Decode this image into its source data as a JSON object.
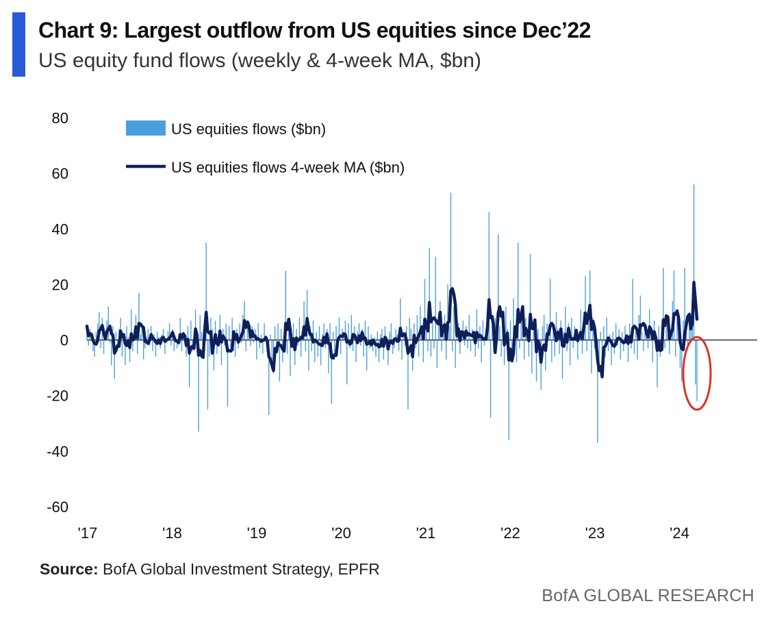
{
  "header": {
    "title": "Chart 9: Largest outflow from US equities since Dec’22",
    "subtitle": "US equity fund flows (weekly & 4-week MA, $bn)"
  },
  "footer": {
    "source_label": "Source:",
    "source_text": "BofA Global Investment Strategy, EPFR",
    "brand": "BofA GLOBAL RESEARCH"
  },
  "colors": {
    "accent": "#2a5bd7",
    "bars": "#4a9fdc",
    "line": "#0e1f5b",
    "zero_line": "#444444",
    "highlight": "#d9322b"
  },
  "chart_data": {
    "type": "bar",
    "ylim": [
      -60,
      80
    ],
    "y_ticks": [
      "80",
      "60",
      "40",
      "20",
      "0",
      "-20",
      "-40",
      "-60"
    ],
    "x_ticks": [
      "'17",
      "'18",
      "'19",
      "'20",
      "'21",
      "'22",
      "'23",
      "'24"
    ],
    "grid": false,
    "legend_position": "top-left",
    "annotation": "red oval highlighting latest weekly outflow",
    "series": [
      {
        "name": "US equities flows ($bn)",
        "type": "bar",
        "values": [
          5,
          -2,
          4,
          1,
          -4,
          -6,
          3,
          6,
          10,
          -3,
          8,
          -5,
          2,
          7,
          12,
          -1,
          -9,
          5,
          -14,
          3,
          -2,
          4,
          8,
          -6,
          2,
          -9,
          5,
          1,
          -8,
          11,
          -4,
          3,
          9,
          -5,
          17,
          2,
          6,
          -7,
          -3,
          1,
          4,
          -2,
          5,
          -4,
          2,
          -6,
          3,
          1,
          -3,
          2,
          4,
          -5,
          -1,
          3,
          6,
          -2,
          4,
          -4,
          1,
          -3,
          2,
          8,
          -4,
          3,
          -1,
          -6,
          5,
          -17,
          7,
          -4,
          2,
          11,
          -2,
          -33,
          9,
          3,
          -4,
          6,
          35,
          -25,
          -6,
          8,
          4,
          -11,
          7,
          -5,
          2,
          9,
          -9,
          4,
          -2,
          6,
          -24,
          5,
          -3,
          8,
          2,
          -6,
          4,
          -3,
          6,
          -1,
          9,
          14,
          -4,
          7,
          3,
          -2,
          5,
          -1,
          4,
          -7,
          6,
          -3,
          2,
          -5,
          6,
          1,
          -4,
          -27,
          2,
          -7,
          -12,
          5,
          -3,
          6,
          -15,
          4,
          -8,
          3,
          25,
          -5,
          7,
          -13,
          2,
          6,
          -9,
          4,
          -2,
          8,
          -6,
          3,
          14,
          -4,
          18,
          -11,
          5,
          -4,
          7,
          -8,
          3,
          -6,
          5,
          -9,
          2,
          6,
          -3,
          4,
          -12,
          6,
          -23,
          3,
          -7,
          5,
          -2,
          8,
          -5,
          4,
          2,
          7,
          -16,
          6,
          -3,
          9,
          -4,
          5,
          -8,
          3,
          6,
          -2,
          4,
          -6,
          7,
          -11,
          5,
          -3,
          2,
          -4,
          1,
          -6,
          3,
          -8,
          2,
          4,
          -7,
          5,
          -2,
          -9,
          3,
          6,
          -5,
          -3,
          4,
          2,
          -4,
          15,
          -7,
          3,
          -2,
          5,
          -25,
          8,
          4,
          -11,
          6,
          -3,
          9,
          -6,
          12,
          4,
          -8,
          22,
          3,
          -4,
          33,
          -6,
          8,
          -3,
          30,
          -10,
          6,
          14,
          -4,
          3,
          9,
          -7,
          20,
          5,
          53,
          -4,
          12,
          -10,
          8,
          6,
          -5,
          3,
          7,
          -2,
          5,
          -3,
          9,
          -4,
          4,
          2,
          -6,
          11,
          -3,
          5,
          -8,
          7,
          -2,
          4,
          10,
          46,
          -28,
          6,
          -4,
          8,
          -3,
          38,
          5,
          -6,
          3,
          -9,
          12,
          4,
          -36,
          7,
          -5,
          15,
          2,
          -8,
          35,
          -3,
          11,
          5,
          -7,
          8,
          4,
          -6,
          31,
          -12,
          3,
          7,
          -15,
          4,
          -3,
          -18,
          5,
          9,
          -11,
          6,
          4,
          22,
          -8,
          3,
          -6,
          10,
          4,
          -5,
          7,
          -14,
          3,
          12,
          -4,
          6,
          -9,
          8,
          -3,
          5,
          4,
          -7,
          3,
          11,
          -5,
          10,
          23,
          -4,
          6,
          25,
          -12,
          8,
          -3,
          4,
          -37,
          -8,
          3,
          -11,
          5,
          -6,
          8,
          -4,
          2,
          -9,
          3,
          -5,
          6,
          -2,
          4,
          -7,
          3,
          -4,
          5,
          2,
          -8,
          6,
          -3,
          22,
          -5,
          4,
          -7,
          9,
          16,
          3,
          -4,
          6,
          5,
          -3,
          11,
          2,
          -8,
          7,
          3,
          -17,
          5,
          -6,
          4,
          26,
          -3,
          8,
          2,
          -5,
          4,
          14,
          25,
          -6,
          9,
          4,
          -10,
          -15,
          7,
          26,
          4,
          -3,
          10,
          5,
          12,
          56,
          -16,
          -22
        ]
      },
      {
        "name": "US equities flows 4-week MA ($bn)",
        "type": "line",
        "window": 4
      }
    ]
  }
}
